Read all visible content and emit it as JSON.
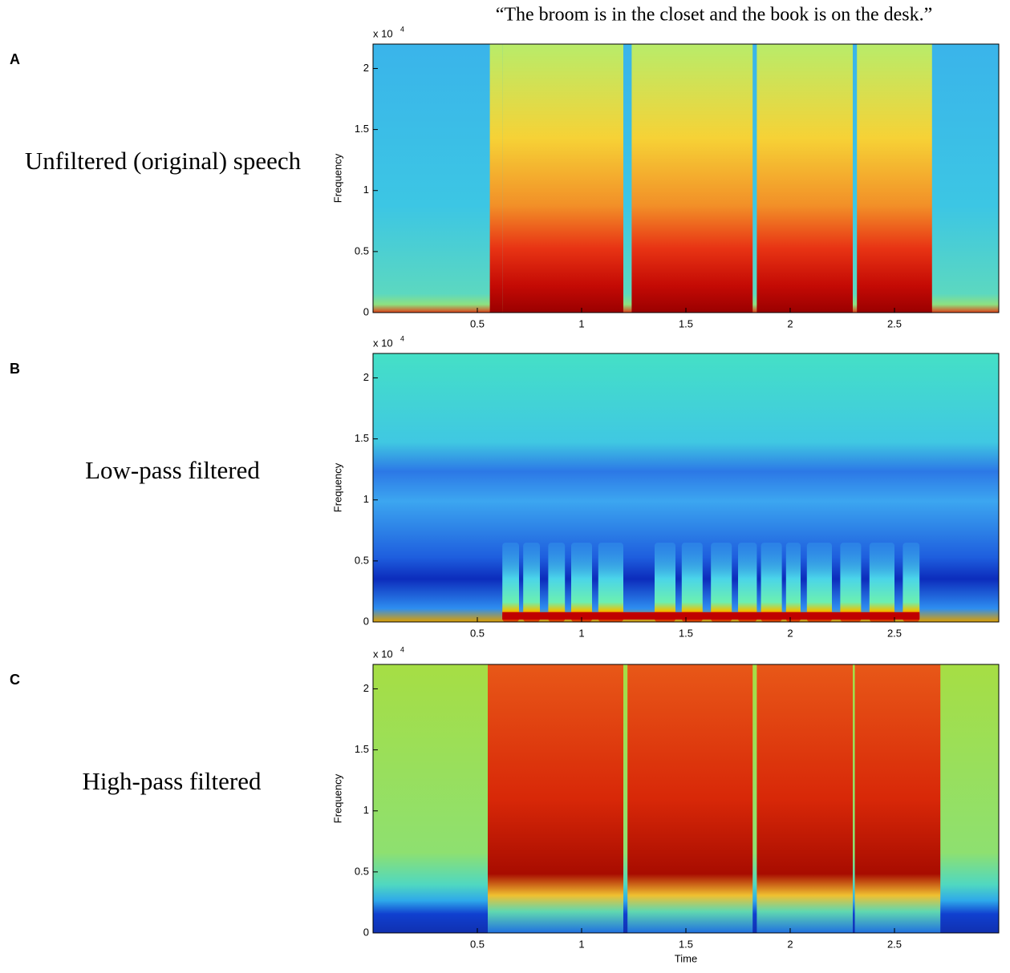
{
  "caption": "“The broom is in the closet and the book is on the desk.”",
  "chart_data": [
    {
      "type": "spectrogram",
      "label": "A",
      "title": "Unfiltered (original) speech",
      "ylabel": "Frequency",
      "y_multiplier": "x 10",
      "y_multiplier_exponent": "4",
      "xlim": [
        0,
        3
      ],
      "ylim": [
        0,
        2.2
      ],
      "xticks": [
        0.5,
        1,
        1.5,
        2,
        2.5
      ],
      "yticks": [
        0,
        0.5,
        1,
        1.5,
        2
      ]
    },
    {
      "type": "spectrogram",
      "label": "B",
      "title": "Low-pass filtered",
      "ylabel": "Frequency",
      "y_multiplier": "x 10",
      "y_multiplier_exponent": "4",
      "xlim": [
        0,
        3
      ],
      "ylim": [
        0,
        2.2
      ],
      "xticks": [
        0.5,
        1,
        1.5,
        2,
        2.5
      ],
      "yticks": [
        0,
        0.5,
        1,
        1.5,
        2
      ]
    },
    {
      "type": "spectrogram",
      "label": "C",
      "title": "High-pass filtered",
      "ylabel": "Frequency",
      "xlabel": "Time",
      "y_multiplier": "x 10",
      "y_multiplier_exponent": "4",
      "xlim": [
        0,
        3
      ],
      "ylim": [
        0,
        2.2
      ],
      "xticks": [
        0.5,
        1,
        1.5,
        2,
        2.5
      ],
      "yticks": [
        0,
        0.5,
        1,
        1.5,
        2
      ]
    }
  ]
}
